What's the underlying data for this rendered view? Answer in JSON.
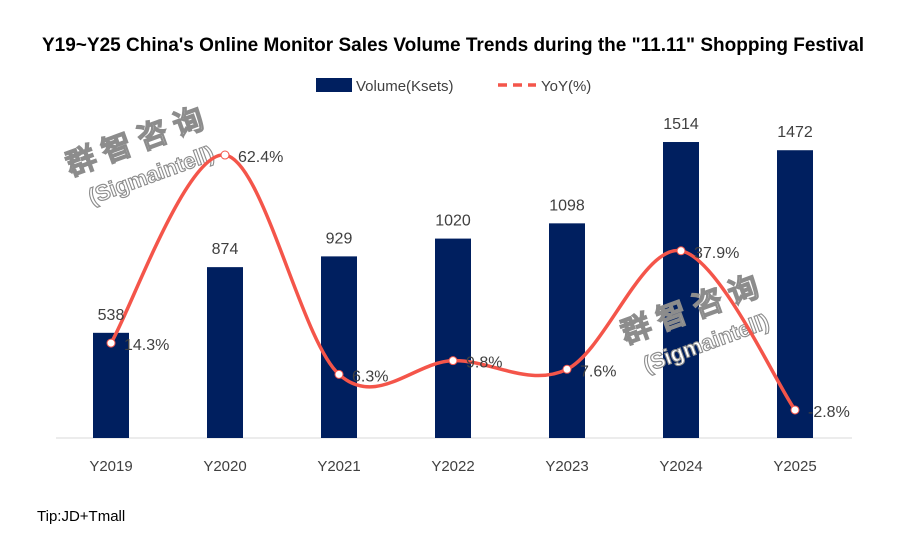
{
  "chart_data": {
    "type": "bar+line",
    "title": "Y19~Y25 China's Online Monitor Sales Volume Trends during the \"11.11\" Shopping Festival",
    "categories": [
      "Y2019",
      "Y2020",
      "Y2021",
      "Y2022",
      "Y2023",
      "Y2024",
      "Y2025"
    ],
    "series": [
      {
        "name": "Volume(Ksets)",
        "type": "bar",
        "color": "#001F5F",
        "values": [
          538,
          874,
          929,
          1020,
          1098,
          1514,
          1472
        ],
        "labels": [
          "538",
          "874",
          "929",
          "1020",
          "1098",
          "1514",
          "1472"
        ]
      },
      {
        "name": "YoY(%)",
        "type": "line",
        "smooth": true,
        "color": "#F4554A",
        "values": [
          14.3,
          62.4,
          6.3,
          9.8,
          7.6,
          37.9,
          -2.8
        ],
        "labels": [
          "14.3%",
          "62.4%",
          "6.3%",
          "9.8%",
          "7.6%",
          "37.9%",
          "-2.8%"
        ]
      }
    ],
    "legend": "top",
    "grid": false,
    "note": "Tip:JD+Tmall"
  },
  "watermark": "群智咨询 (Sigmaintell)"
}
